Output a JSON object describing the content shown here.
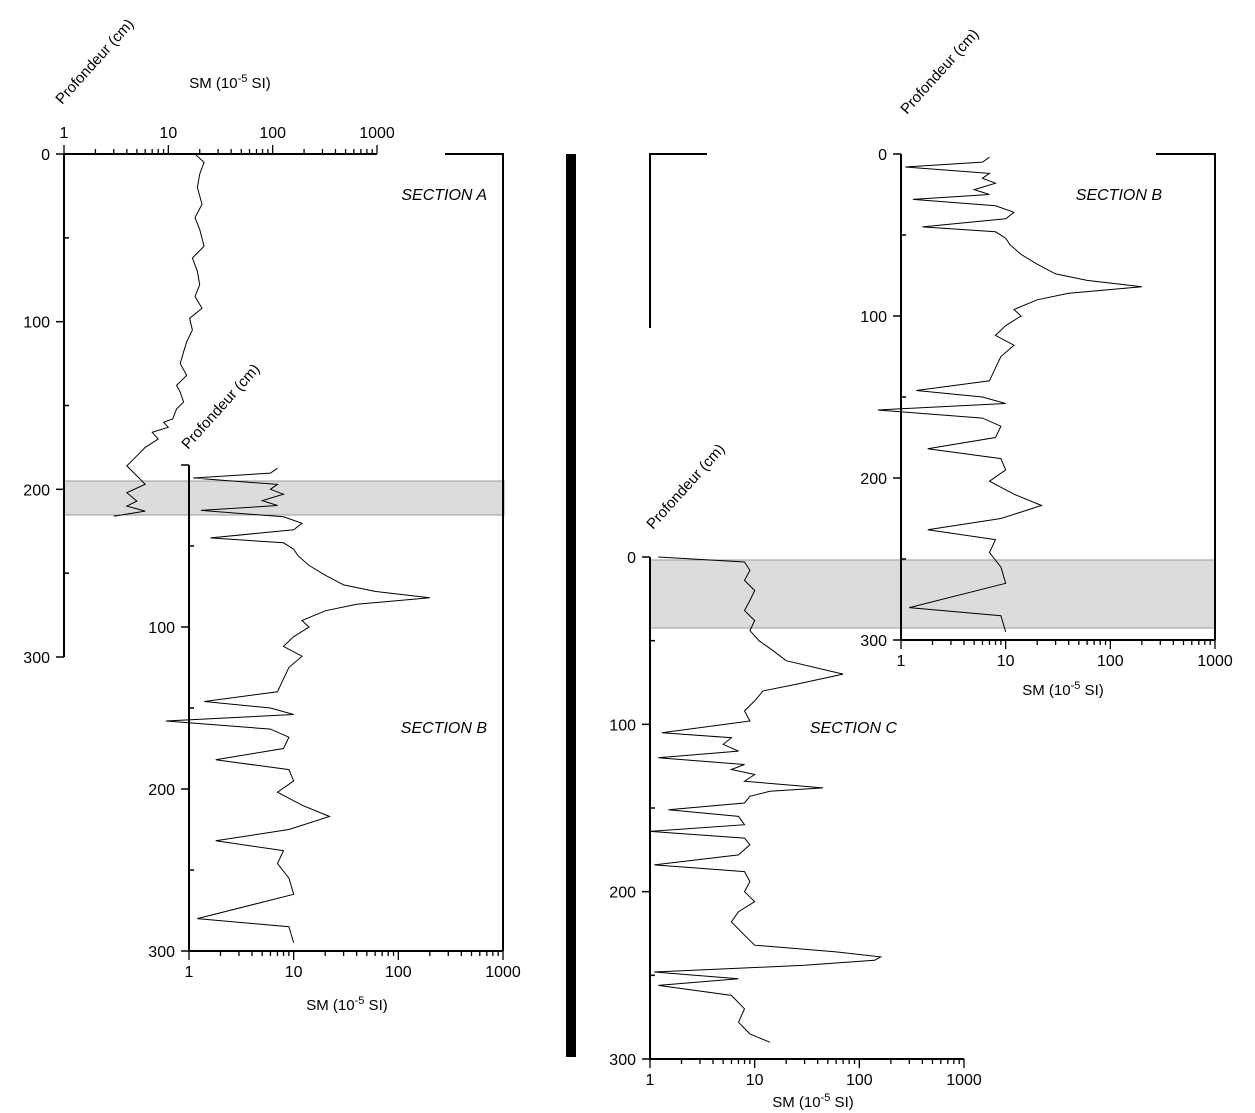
{
  "chart_data": [
    {
      "type": "line",
      "panel": "left",
      "sections": [
        {
          "name": "SECTION A",
          "xlabel": "SM (10-5 SI)",
          "ylabel": "Profondeur (cm)",
          "xscale": "log",
          "xlim": [
            1,
            1000
          ],
          "ylim": [
            0,
            300
          ],
          "xticks": [
            "1",
            "10",
            "100",
            "1000"
          ],
          "yticks": [
            "0",
            "100",
            "200",
            "300"
          ],
          "series": [
            {
              "x": [
                18,
                22,
                20,
                19,
                21,
                18,
                20,
                22,
                17,
                19,
                20,
                18,
                21,
                16,
                17,
                15,
                14,
                13,
                15,
                12,
                13,
                14,
                12,
                11,
                9,
                10,
                7,
                8,
                6,
                5,
                4,
                5,
                6,
                4,
                5,
                4,
                6,
                3
              ],
              "y": [
                0,
                5,
                12,
                20,
                30,
                38,
                45,
                55,
                62,
                70,
                78,
                85,
                92,
                98,
                105,
                112,
                118,
                125,
                132,
                138,
                142,
                148,
                152,
                158,
                160,
                163,
                166,
                170,
                175,
                180,
                186,
                192,
                197,
                202,
                207,
                210,
                213,
                216
              ]
            }
          ]
        },
        {
          "name": "SECTION B",
          "xlabel": "SM (10-5 SI)",
          "ylabel": "Profondeur (cm)",
          "xscale": "log",
          "xlim": [
            1,
            1000
          ],
          "ylim": [
            0,
            300
          ],
          "xticks": [
            "1",
            "10",
            "100",
            "1000"
          ],
          "yticks": [
            "100",
            "200",
            "300"
          ],
          "series": [
            {
              "x": [
                7,
                6,
                1.1,
                7,
                6,
                8,
                5,
                7,
                1.3,
                8,
                12,
                10,
                1.6,
                8,
                10,
                11,
                14,
                20,
                30,
                60,
                200,
                40,
                20,
                12,
                14,
                10,
                8,
                12,
                9,
                8,
                7,
                1.4,
                6,
                10,
                0.6,
                6,
                9,
                8,
                1.8,
                9,
                10,
                7,
                12,
                22,
                9,
                1.8,
                8,
                7,
                9,
                10,
                1.2,
                9,
                10
              ],
              "y": [
                2,
                5,
                8,
                12,
                15,
                18,
                22,
                25,
                28,
                32,
                36,
                40,
                45,
                48,
                52,
                56,
                62,
                68,
                74,
                78,
                82,
                86,
                90,
                96,
                100,
                106,
                112,
                118,
                125,
                132,
                140,
                146,
                150,
                154,
                158,
                163,
                168,
                175,
                182,
                188,
                195,
                202,
                210,
                217,
                225,
                232,
                238,
                246,
                255,
                265,
                280,
                285,
                295
              ]
            }
          ]
        }
      ]
    },
    {
      "type": "line",
      "panel": "right",
      "sections": [
        {
          "name": "SECTION B",
          "xlabel": "SM (10-5 SI)",
          "ylabel": "Profondeur (cm)",
          "xscale": "log",
          "xlim": [
            1,
            1000
          ],
          "ylim": [
            0,
            300
          ],
          "xticks": [
            "1",
            "10",
            "100",
            "1000"
          ],
          "yticks": [
            "0",
            "100",
            "200",
            "300"
          ],
          "series": [
            {
              "x": [
                7,
                6,
                1.1,
                7,
                6,
                8,
                5,
                7,
                1.3,
                8,
                12,
                10,
                1.6,
                8,
                10,
                11,
                14,
                20,
                30,
                60,
                200,
                40,
                20,
                12,
                14,
                10,
                8,
                12,
                9,
                8,
                7,
                1.4,
                6,
                10,
                0.6,
                6,
                9,
                8,
                1.8,
                9,
                10,
                7,
                12,
                22,
                9,
                1.8,
                8,
                7,
                9,
                10,
                1.2,
                9,
                10
              ],
              "y": [
                2,
                5,
                8,
                12,
                15,
                18,
                22,
                25,
                28,
                32,
                36,
                40,
                45,
                48,
                52,
                56,
                62,
                68,
                74,
                78,
                82,
                86,
                90,
                96,
                100,
                106,
                112,
                118,
                125,
                132,
                140,
                146,
                150,
                154,
                158,
                163,
                168,
                175,
                182,
                188,
                195,
                202,
                210,
                217,
                225,
                232,
                238,
                246,
                255,
                265,
                280,
                285,
                295
              ]
            }
          ]
        },
        {
          "name": "SECTION C",
          "xlabel": "SM (10-5 SI)",
          "ylabel": "Profondeur (cm)",
          "xscale": "log",
          "xlim": [
            1,
            1000
          ],
          "ylim": [
            0,
            300
          ],
          "xticks": [
            "1",
            "10",
            "100",
            "1000"
          ],
          "yticks": [
            "0",
            "100",
            "200",
            "300"
          ],
          "series": [
            {
              "x": [
                1.2,
                8,
                9,
                8,
                10,
                9,
                8,
                10,
                9,
                11,
                15,
                20,
                70,
                25,
                12,
                10,
                8,
                9,
                1.3,
                6,
                5,
                7,
                1.2,
                8,
                6,
                10,
                8,
                45,
                14,
                9,
                8,
                1.5,
                7,
                8,
                1.0,
                8,
                9,
                7,
                1.1,
                8,
                9,
                8,
                10,
                7,
                6,
                8,
                10,
                60,
                160,
                140,
                30,
                1.1,
                7,
                1.2,
                6,
                8,
                7,
                9,
                14
              ],
              "y": [
                0,
                3,
                8,
                14,
                20,
                26,
                32,
                38,
                44,
                50,
                56,
                62,
                70,
                76,
                80,
                86,
                92,
                98,
                105,
                108,
                112,
                116,
                120,
                124,
                127,
                130,
                134,
                138,
                140,
                143,
                147,
                151,
                155,
                160,
                164,
                168,
                172,
                178,
                184,
                188,
                194,
                200,
                206,
                212,
                218,
                226,
                232,
                236,
                239,
                241,
                244,
                248,
                252,
                256,
                262,
                270,
                278,
                285,
                290
              ]
            }
          ]
        }
      ]
    }
  ]
}
